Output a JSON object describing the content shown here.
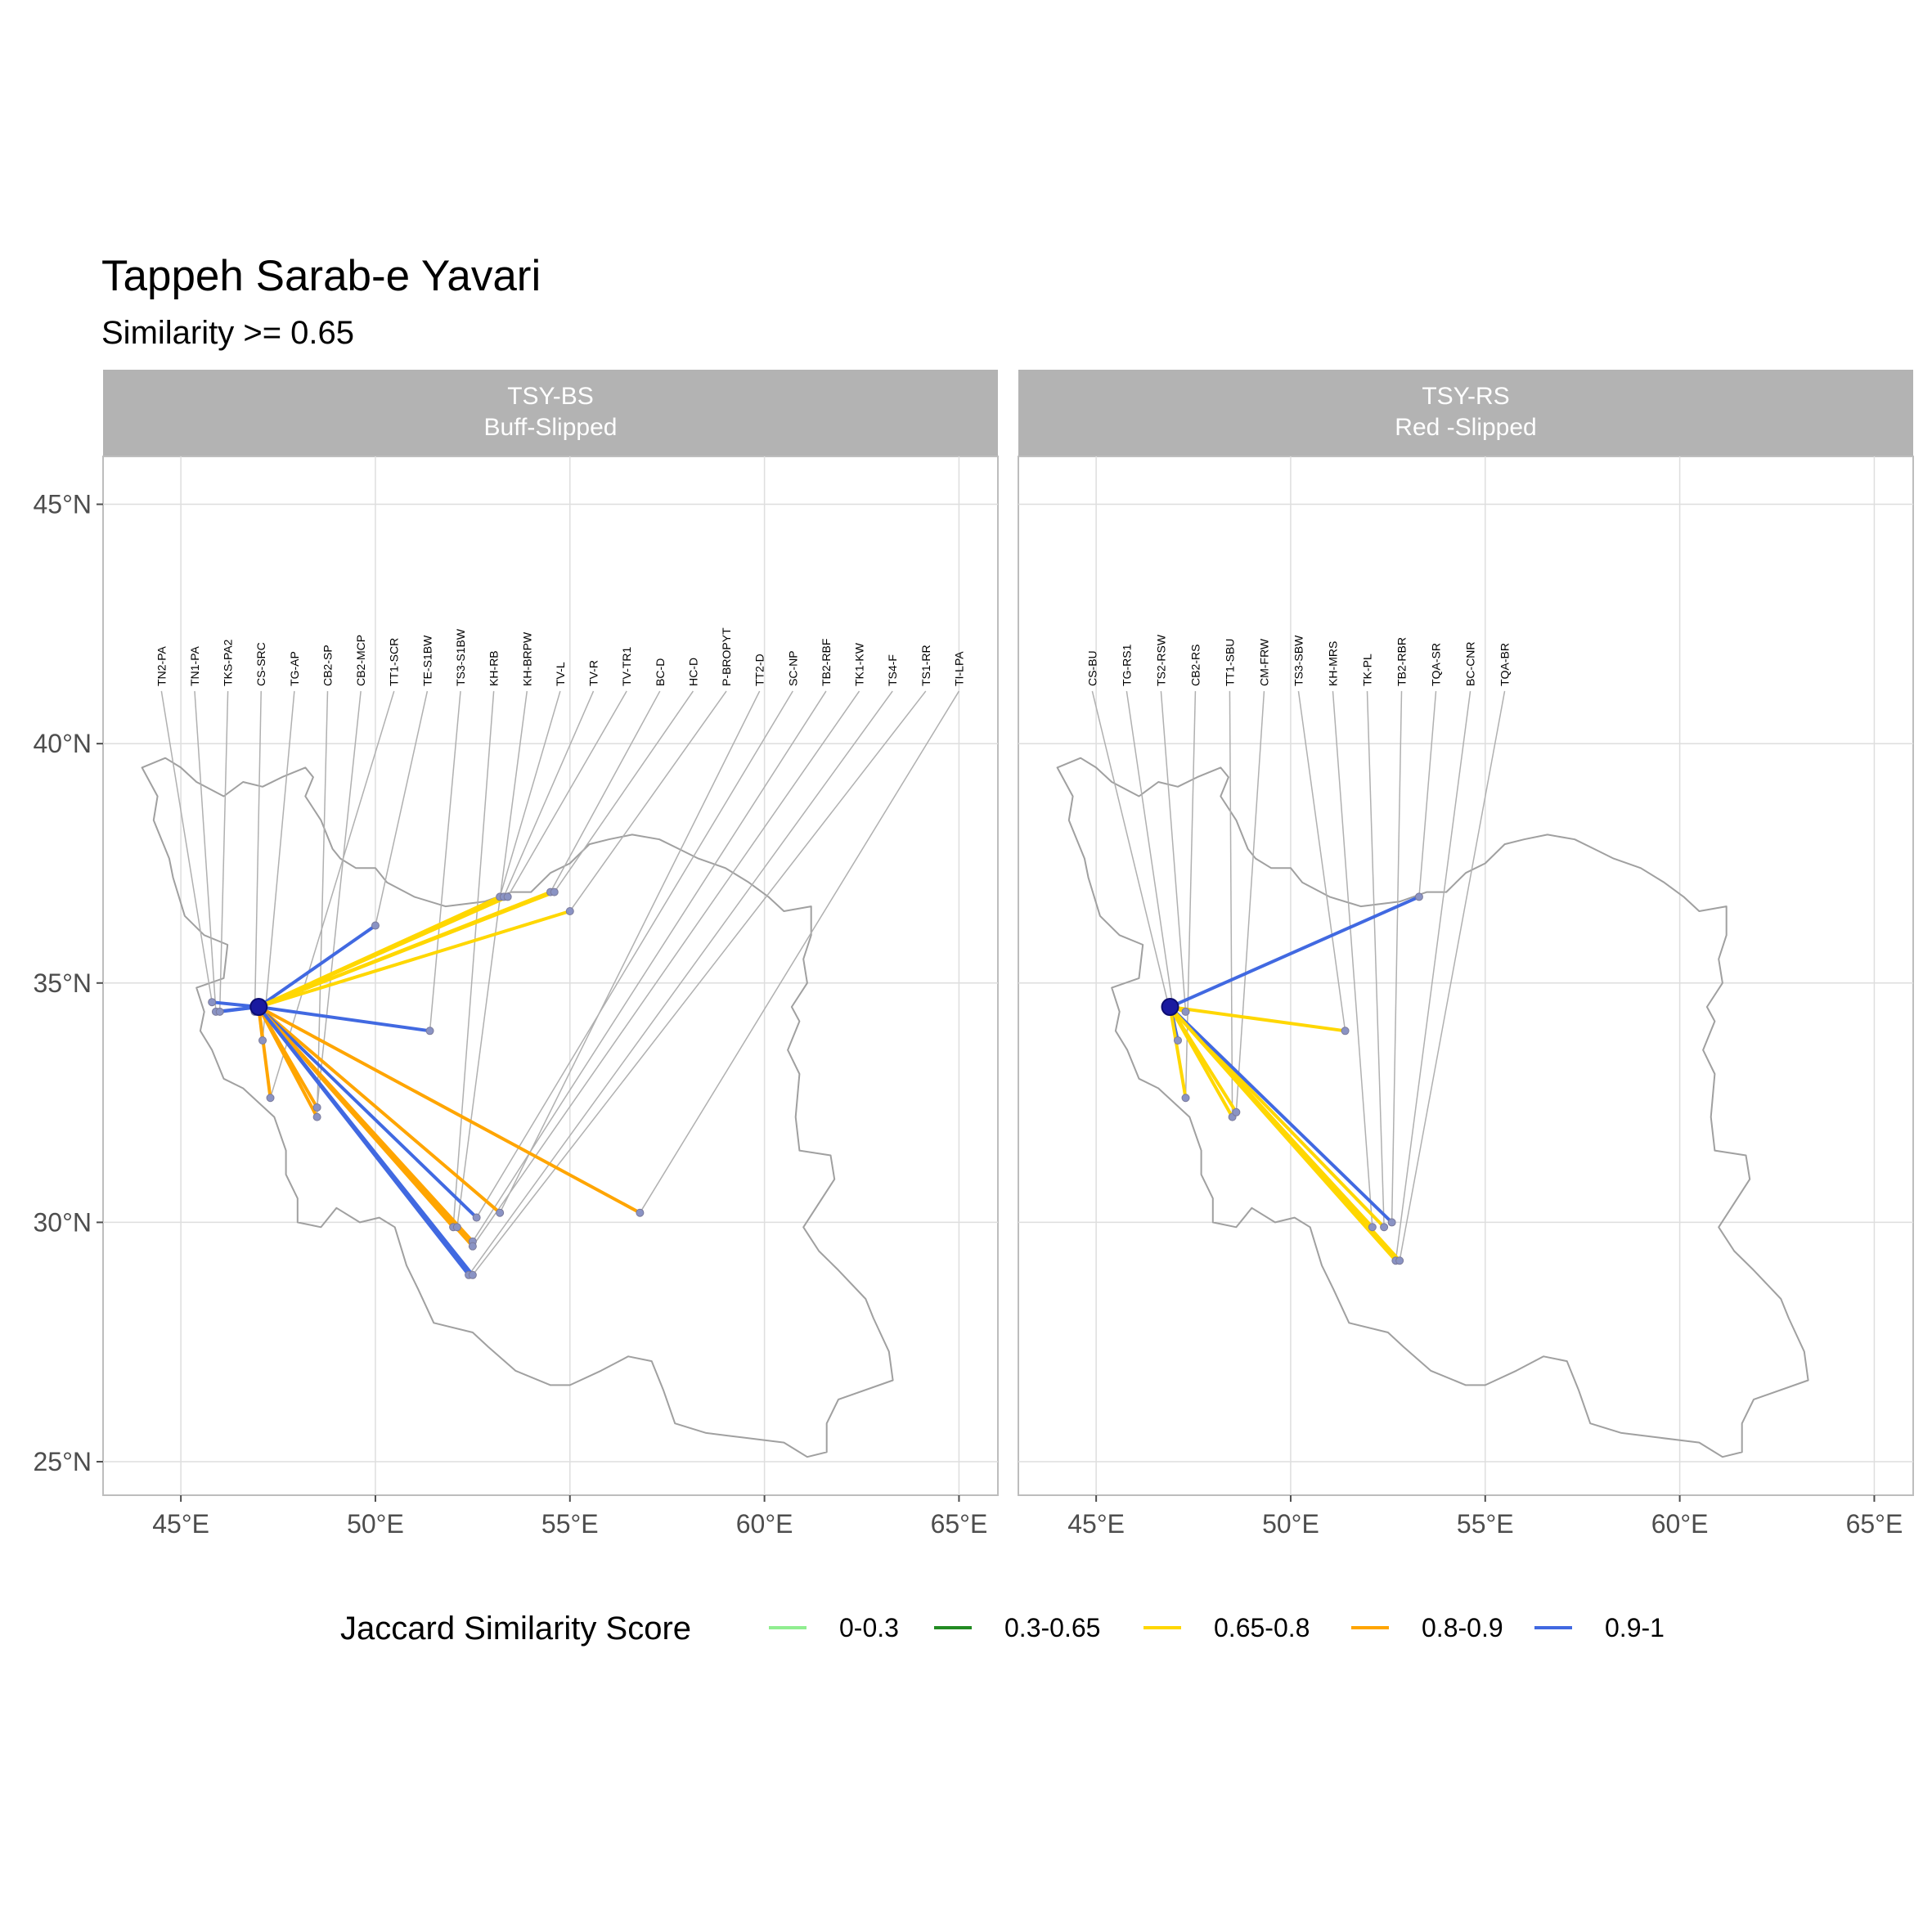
{
  "title": "Tappeh Sarab-e Yavari",
  "subtitle": "Similarity >= 0.65",
  "colors": {
    "0-0.3": "#90ee90",
    "0.3-0.65": "#228b22",
    "0.65-0.8": "#ffd700",
    "0.8-0.9": "#ffa500",
    "0.9-1": "#4169e1"
  },
  "chart_data": {
    "type": "map",
    "xlim": [
      43,
      66
    ],
    "ylim": [
      24.3,
      46
    ],
    "x_ticks": [
      45,
      50,
      55,
      60,
      65
    ],
    "x_tick_labels": [
      "45°E",
      "50°E",
      "55°E",
      "60°E",
      "65°E"
    ],
    "y_ticks": [
      25,
      30,
      35,
      40,
      45
    ],
    "y_tick_labels": [
      "25°N",
      "30°N",
      "35°N",
      "40°N",
      "45°N"
    ],
    "grid": true,
    "label_row_lat": 41.2,
    "legend": {
      "title": "Jaccard Similarity Score",
      "position": "bottom",
      "entries": [
        "0-0.3",
        "0.3-0.65",
        "0.65-0.8",
        "0.8-0.9",
        "0.9-1"
      ]
    },
    "iran_outline": [
      [
        44.0,
        39.5
      ],
      [
        44.6,
        39.7
      ],
      [
        45.0,
        39.5
      ],
      [
        45.4,
        39.2
      ],
      [
        46.1,
        38.9
      ],
      [
        46.6,
        39.2
      ],
      [
        47.1,
        39.1
      ],
      [
        47.6,
        39.3
      ],
      [
        48.2,
        39.5
      ],
      [
        48.4,
        39.3
      ],
      [
        48.2,
        38.9
      ],
      [
        48.6,
        38.4
      ],
      [
        48.9,
        37.8
      ],
      [
        49.1,
        37.6
      ],
      [
        49.5,
        37.4
      ],
      [
        50.0,
        37.4
      ],
      [
        50.3,
        37.1
      ],
      [
        51.0,
        36.8
      ],
      [
        51.8,
        36.6
      ],
      [
        52.8,
        36.7
      ],
      [
        53.5,
        36.9
      ],
      [
        54.0,
        36.9
      ],
      [
        54.5,
        37.3
      ],
      [
        55.0,
        37.5
      ],
      [
        55.5,
        37.9
      ],
      [
        56.0,
        38.0
      ],
      [
        56.6,
        38.1
      ],
      [
        57.3,
        38.0
      ],
      [
        57.8,
        37.8
      ],
      [
        58.3,
        37.6
      ],
      [
        59.0,
        37.4
      ],
      [
        59.6,
        37.1
      ],
      [
        60.1,
        36.8
      ],
      [
        60.5,
        36.5
      ],
      [
        61.2,
        36.6
      ],
      [
        61.2,
        36.0
      ],
      [
        61.0,
        35.5
      ],
      [
        61.1,
        35.0
      ],
      [
        60.7,
        34.5
      ],
      [
        60.9,
        34.2
      ],
      [
        60.6,
        33.6
      ],
      [
        60.9,
        33.1
      ],
      [
        60.8,
        32.2
      ],
      [
        60.9,
        31.5
      ],
      [
        61.7,
        31.4
      ],
      [
        61.8,
        30.9
      ],
      [
        61.0,
        29.9
      ],
      [
        61.4,
        29.4
      ],
      [
        61.9,
        29.0
      ],
      [
        62.6,
        28.4
      ],
      [
        62.8,
        28.0
      ],
      [
        63.2,
        27.3
      ],
      [
        63.3,
        26.7
      ],
      [
        61.9,
        26.3
      ],
      [
        61.6,
        25.8
      ],
      [
        61.6,
        25.2
      ],
      [
        61.1,
        25.1
      ],
      [
        60.5,
        25.4
      ],
      [
        59.5,
        25.5
      ],
      [
        58.5,
        25.6
      ],
      [
        57.7,
        25.8
      ],
      [
        57.4,
        26.5
      ],
      [
        57.1,
        27.1
      ],
      [
        56.5,
        27.2
      ],
      [
        55.8,
        26.9
      ],
      [
        55.0,
        26.6
      ],
      [
        54.5,
        26.6
      ],
      [
        53.6,
        26.9
      ],
      [
        52.9,
        27.4
      ],
      [
        52.5,
        27.7
      ],
      [
        51.5,
        27.9
      ],
      [
        51.1,
        28.6
      ],
      [
        50.8,
        29.1
      ],
      [
        50.5,
        29.9
      ],
      [
        50.1,
        30.1
      ],
      [
        49.6,
        30.0
      ],
      [
        49.0,
        30.3
      ],
      [
        48.6,
        29.9
      ],
      [
        48.0,
        30.0
      ],
      [
        48.0,
        30.5
      ],
      [
        47.7,
        31.0
      ],
      [
        47.7,
        31.5
      ],
      [
        47.4,
        32.2
      ],
      [
        46.6,
        32.8
      ],
      [
        46.1,
        33.0
      ],
      [
        45.8,
        33.6
      ],
      [
        45.5,
        34.0
      ],
      [
        45.6,
        34.4
      ],
      [
        45.4,
        34.9
      ],
      [
        46.1,
        35.1
      ],
      [
        46.2,
        35.8
      ],
      [
        45.6,
        36.0
      ],
      [
        45.1,
        36.4
      ],
      [
        44.8,
        37.2
      ],
      [
        44.7,
        37.6
      ],
      [
        44.3,
        38.4
      ],
      [
        44.4,
        38.9
      ],
      [
        44.0,
        39.5
      ]
    ],
    "panels": [
      {
        "strip_line1": "TSY-BS",
        "strip_line2": "Buff-Slipped",
        "origin": [
          47.0,
          34.5
        ],
        "sites": [
          {
            "label": "TN2-PA",
            "lat": 34.6,
            "lon": 45.8,
            "cat": "0.9-1"
          },
          {
            "label": "TN1-PA",
            "lat": 34.4,
            "lon": 45.9,
            "cat": "0.9-1"
          },
          {
            "label": "TKS-PA2",
            "lat": 34.4,
            "lon": 46.0,
            "cat": "0.9-1"
          },
          {
            "label": "CS-SRC",
            "lat": 34.4,
            "lon": 46.9,
            "cat": "0.9-1"
          },
          {
            "label": "TG-AP",
            "lat": 33.8,
            "lon": 47.1,
            "cat": "0.8-0.9"
          },
          {
            "label": "CB2-SP",
            "lat": 32.2,
            "lon": 48.5,
            "cat": "0.8-0.9"
          },
          {
            "label": "CB2-MCP",
            "lat": 32.4,
            "lon": 48.5,
            "cat": "0.8-0.9"
          },
          {
            "label": "TT1-SCR",
            "lat": 32.6,
            "lon": 47.3,
            "cat": "0.8-0.9"
          },
          {
            "label": "TE-S1BW",
            "lat": 36.2,
            "lon": 50.0,
            "cat": "0.9-1"
          },
          {
            "label": "TS3-S1BW",
            "lat": 34.0,
            "lon": 51.4,
            "cat": "0.9-1"
          },
          {
            "label": "KH-RB",
            "lat": 29.9,
            "lon": 52.0,
            "cat": "0.8-0.9"
          },
          {
            "label": "KH-BRPW",
            "lat": 29.9,
            "lon": 52.1,
            "cat": "0.8-0.9"
          },
          {
            "label": "TV-L",
            "lat": 36.8,
            "lon": 53.2,
            "cat": "0.65-0.8"
          },
          {
            "label": "TV-R",
            "lat": 36.8,
            "lon": 53.3,
            "cat": "0.65-0.8"
          },
          {
            "label": "TV-TR1",
            "lat": 36.8,
            "lon": 53.4,
            "cat": "0.65-0.8"
          },
          {
            "label": "BC-D",
            "lat": 36.9,
            "lon": 54.5,
            "cat": "0.65-0.8"
          },
          {
            "label": "HC-D",
            "lat": 36.9,
            "lon": 54.6,
            "cat": "0.65-0.8"
          },
          {
            "label": "P-BROPYT",
            "lat": 36.5,
            "lon": 55.0,
            "cat": "0.65-0.8"
          },
          {
            "label": "TT2-D",
            "lat": 30.2,
            "lon": 53.2,
            "cat": "0.8-0.9"
          },
          {
            "label": "SC-NP",
            "lat": 30.1,
            "lon": 52.6,
            "cat": "0.9-1"
          },
          {
            "label": "TB2-RBF",
            "lat": 29.6,
            "lon": 52.5,
            "cat": "0.8-0.9"
          },
          {
            "label": "TK1-KW",
            "lat": 29.5,
            "lon": 52.5,
            "cat": "0.8-0.9"
          },
          {
            "label": "TS4-F",
            "lat": 28.9,
            "lon": 52.4,
            "cat": "0.9-1"
          },
          {
            "label": "TS1-RR",
            "lat": 28.9,
            "lon": 52.5,
            "cat": "0.9-1"
          },
          {
            "label": "TI-LPA",
            "lat": 30.2,
            "lon": 56.8,
            "cat": "0.8-0.9"
          }
        ]
      },
      {
        "strip_line1": "TSY-RS",
        "strip_line2": "Red -Slipped",
        "origin": [
          46.9,
          34.5
        ],
        "sites": [
          {
            "label": "CS-BU",
            "lat": 34.4,
            "lon": 46.9,
            "cat": "0.9-1"
          },
          {
            "label": "TG-RS1",
            "lat": 33.8,
            "lon": 47.1,
            "cat": "0.9-1"
          },
          {
            "label": "TS2-RSW",
            "lat": 34.4,
            "lon": 47.3,
            "cat": "0.65-0.8"
          },
          {
            "label": "CB2-RS",
            "lat": 32.6,
            "lon": 47.3,
            "cat": "0.65-0.8"
          },
          {
            "label": "TT1-SBU",
            "lat": 32.2,
            "lon": 48.5,
            "cat": "0.65-0.8"
          },
          {
            "label": "CM-FRW",
            "lat": 32.3,
            "lon": 48.6,
            "cat": "0.65-0.8"
          },
          {
            "label": "TS3-SBW",
            "lat": 34.0,
            "lon": 51.4,
            "cat": "0.65-0.8"
          },
          {
            "label": "KH-MRS",
            "lat": 29.9,
            "lon": 52.1,
            "cat": "0.65-0.8"
          },
          {
            "label": "TK-PL",
            "lat": 29.9,
            "lon": 52.4,
            "cat": "0.65-0.8"
          },
          {
            "label": "TB2-RBR",
            "lat": 30.0,
            "lon": 52.6,
            "cat": "0.9-1"
          },
          {
            "label": "TQA-SR",
            "lat": 36.8,
            "lon": 53.3,
            "cat": "0.9-1"
          },
          {
            "label": "BC-CNR",
            "lat": 29.2,
            "lon": 52.7,
            "cat": "0.65-0.8"
          },
          {
            "label": "TQA-BR",
            "lat": 29.2,
            "lon": 52.8,
            "cat": "0.65-0.8"
          }
        ]
      }
    ]
  }
}
